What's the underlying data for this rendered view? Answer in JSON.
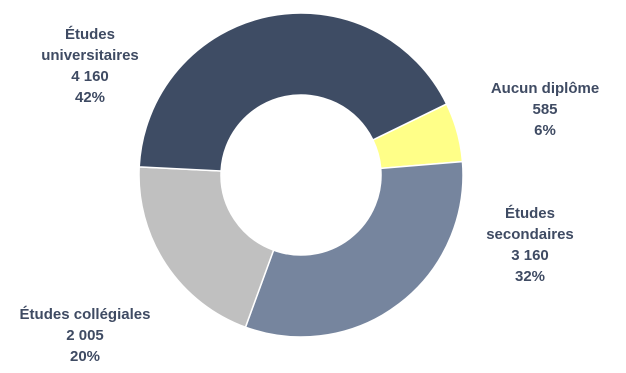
{
  "chart_data": {
    "type": "pie",
    "variant": "donut",
    "title": "",
    "slices": [
      {
        "name": "Aucun diplôme",
        "label_lines": [
          "Aucun diplôme"
        ],
        "value": 585,
        "value_label": "585",
        "percent_label": "6%",
        "color": "#ffff88"
      },
      {
        "name": "Études secondaires",
        "label_lines": [
          "Études",
          "secondaires"
        ],
        "value": 3160,
        "value_label": "3 160",
        "percent_label": "32%",
        "color": "#76859e"
      },
      {
        "name": "Études collégiales",
        "label_lines": [
          "Études collégiales"
        ],
        "value": 2005,
        "value_label": "2 005",
        "percent_label": "20%",
        "color": "#c0c0c0"
      },
      {
        "name": "Études universitaires",
        "label_lines": [
          "Études",
          "universitaires"
        ],
        "value": 4160,
        "value_label": "4 160",
        "percent_label": "42%",
        "color": "#3e4c64"
      }
    ],
    "start_angle_deg": 64,
    "direction": "clockwise",
    "legend": "none",
    "label_color": "#3f4b63"
  }
}
